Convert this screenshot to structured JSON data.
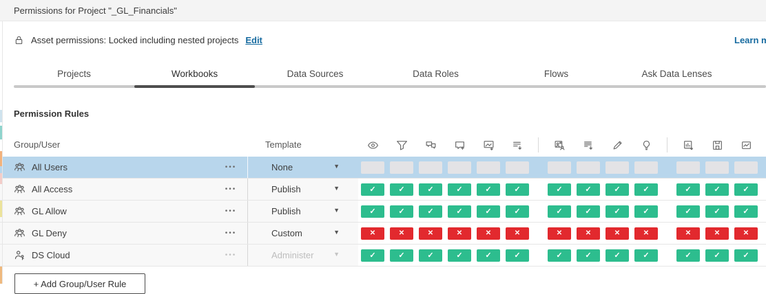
{
  "window": {
    "title": "Permissions for Project \"_GL_Financials\""
  },
  "asset_bar": {
    "lock_icon": "lock-icon",
    "label": "Asset permissions: Locked including nested projects",
    "edit": "Edit",
    "learn_more": "Learn more"
  },
  "tabs": [
    {
      "id": "projects",
      "label": "Projects",
      "active": false
    },
    {
      "id": "workbooks",
      "label": "Workbooks",
      "active": true
    },
    {
      "id": "data-sources",
      "label": "Data Sources",
      "active": false
    },
    {
      "id": "data-roles",
      "label": "Data Roles",
      "active": false
    },
    {
      "id": "flows",
      "label": "Flows",
      "active": false
    },
    {
      "id": "ask-data-lenses",
      "label": "Ask Data Lenses",
      "active": false
    }
  ],
  "section_title": "Permission Rules",
  "table": {
    "group_user_header": "Group/User",
    "template_header": "Template",
    "more_options_glyph": "•••",
    "dropdown_caret_glyph": "▼",
    "capability_groups": [
      [
        "view",
        "filter",
        "view-comments",
        "add-comments",
        "download-image-pdf",
        "download-summary-data"
      ],
      [
        "share-customized",
        "download-full-data",
        "web-edit",
        "run-explain-data"
      ],
      [
        "download-workbook",
        "overwrite",
        "create-refresh-metrics"
      ]
    ],
    "rows": [
      {
        "name": "All Users",
        "entity": "group",
        "template": "None",
        "selected": true,
        "disabled": false,
        "capabilities": [
          "unspecified",
          "unspecified",
          "unspecified",
          "unspecified",
          "unspecified",
          "unspecified",
          "unspecified",
          "unspecified",
          "unspecified",
          "unspecified",
          "unspecified",
          "unspecified",
          "unspecified"
        ]
      },
      {
        "name": "All Access",
        "entity": "group",
        "template": "Publish",
        "selected": false,
        "disabled": false,
        "capabilities": [
          "allowed",
          "allowed",
          "allowed",
          "allowed",
          "allowed",
          "allowed",
          "allowed",
          "allowed",
          "allowed",
          "allowed",
          "allowed",
          "allowed",
          "allowed"
        ]
      },
      {
        "name": "GL Allow",
        "entity": "group",
        "template": "Publish",
        "selected": false,
        "disabled": false,
        "capabilities": [
          "allowed",
          "allowed",
          "allowed",
          "allowed",
          "allowed",
          "allowed",
          "allowed",
          "allowed",
          "allowed",
          "allowed",
          "allowed",
          "allowed",
          "allowed"
        ]
      },
      {
        "name": "GL Deny",
        "entity": "group",
        "template": "Custom",
        "selected": false,
        "disabled": false,
        "capabilities": [
          "denied",
          "denied",
          "denied",
          "denied",
          "denied",
          "denied",
          "denied",
          "denied",
          "denied",
          "denied",
          "denied",
          "denied",
          "denied"
        ]
      },
      {
        "name": "DS Cloud",
        "entity": "user",
        "template": "Administer",
        "selected": false,
        "disabled": true,
        "capabilities": [
          "allowed",
          "allowed",
          "allowed",
          "allowed",
          "allowed",
          "allowed",
          "allowed",
          "allowed",
          "allowed",
          "allowed",
          "allowed",
          "allowed",
          "allowed"
        ]
      }
    ]
  },
  "add_rule_button": "+ Add Group/User Rule",
  "legend": {
    "glyphs": {
      "allowed": "✓",
      "denied": "✕",
      "unspecified": ""
    }
  },
  "colors": {
    "allowed": "#2dbd8e",
    "denied": "#e2292e",
    "unspecified": "#e3e3e6",
    "selected_row": "#b8d6ec",
    "link": "#176ba0",
    "active_tab_underline": "#4e4e4e"
  }
}
